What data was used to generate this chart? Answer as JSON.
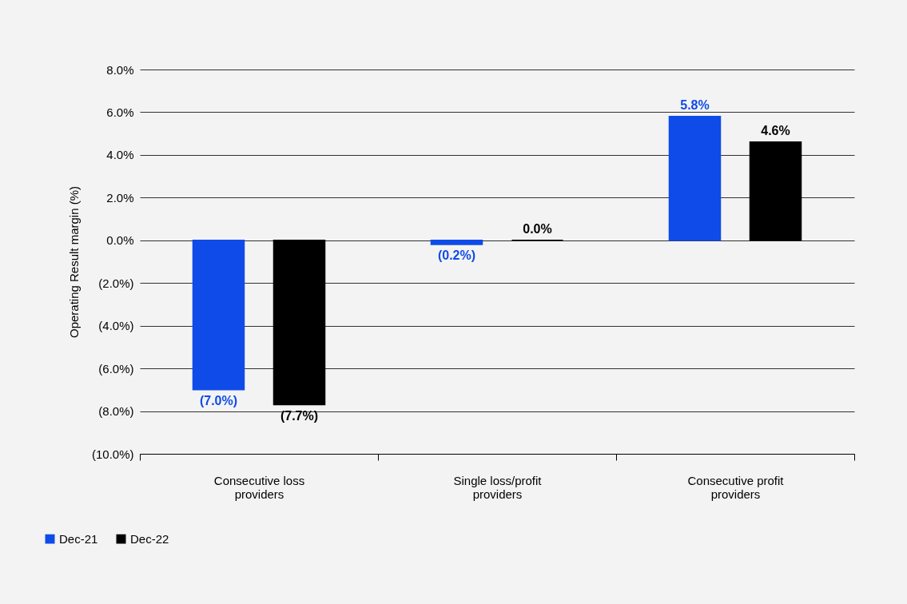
{
  "chart_data": {
    "type": "bar",
    "ylabel": "Operating Result margin (%)",
    "categories": [
      "Consecutive loss\nproviders",
      "Single loss/profit\nproviders",
      "Consecutive profit\nproviders"
    ],
    "series": [
      {
        "name": "Dec-21",
        "color": "#0f4be8",
        "values": [
          -7.0,
          -0.2,
          5.8
        ],
        "value_labels": [
          "(7.0%)",
          "(0.2%)",
          "5.8%"
        ]
      },
      {
        "name": "Dec-22",
        "color": "#000000",
        "values": [
          -7.7,
          0.0,
          4.6
        ],
        "value_labels": [
          "(7.7%)",
          "0.0%",
          "4.6%"
        ]
      }
    ],
    "ylim": [
      -10,
      8
    ],
    "yticks": [
      {
        "value": -10,
        "label": "(10.0%)"
      },
      {
        "value": -8,
        "label": "(8.0%)"
      },
      {
        "value": -6,
        "label": "(6.0%)"
      },
      {
        "value": -4,
        "label": "(4.0%)"
      },
      {
        "value": -2,
        "label": "(2.0%)"
      },
      {
        "value": 0,
        "label": "0.0%"
      },
      {
        "value": 2,
        "label": "2.0%"
      },
      {
        "value": 4,
        "label": "4.0%"
      },
      {
        "value": 6,
        "label": "6.0%"
      },
      {
        "value": 8,
        "label": "8.0%"
      }
    ],
    "grid": "y",
    "legend": "bottom left"
  }
}
